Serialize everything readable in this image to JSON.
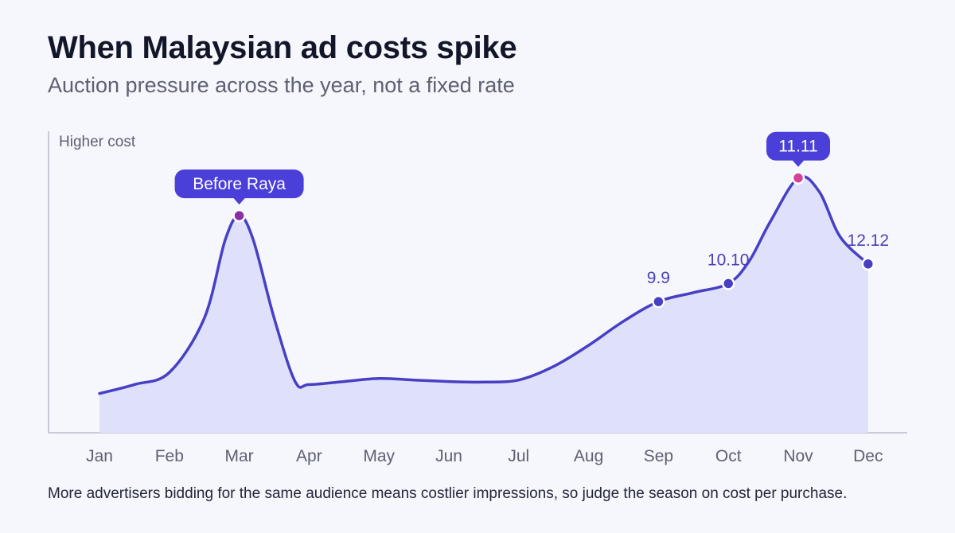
{
  "title": "When Malaysian ad costs spike",
  "subtitle": "Auction pressure across the year, not a fixed rate",
  "footnote": "More advertisers bidding for the same audience means costlier impressions, so judge the season on cost per purchase.",
  "colors": {
    "line": "#4840c4",
    "area": "#dfe1fa",
    "callout_bg": "#4a3fd8",
    "point": "#4840c4",
    "point_raya": "#8b2ca8",
    "point_peak": "#d5409a",
    "axis": "#b9bccb",
    "label": "#4b3fb8"
  },
  "chart_data": {
    "type": "area",
    "categories": [
      "Jan",
      "Feb",
      "Mar",
      "Apr",
      "May",
      "Jun",
      "Jul",
      "Aug",
      "Sep",
      "Oct",
      "Nov",
      "Dec"
    ],
    "ylabel": "Higher cost",
    "xlabel": "",
    "ylim": [
      0,
      100
    ],
    "grid": false,
    "curve": [
      [
        1.0,
        13
      ],
      [
        1.5,
        16
      ],
      [
        2.0,
        20
      ],
      [
        2.5,
        38
      ],
      [
        2.8,
        64
      ],
      [
        3.0,
        72
      ],
      [
        3.2,
        64
      ],
      [
        3.5,
        38
      ],
      [
        3.8,
        17
      ],
      [
        4.0,
        16
      ],
      [
        4.5,
        17
      ],
      [
        5.0,
        18
      ],
      [
        5.5,
        17.5
      ],
      [
        6.0,
        17
      ],
      [
        6.5,
        16.8
      ],
      [
        7.0,
        17.5
      ],
      [
        7.5,
        22
      ],
      [
        8.0,
        29
      ],
      [
        8.5,
        37
      ],
      [
        9.0,
        43.5
      ],
      [
        9.5,
        46.5
      ],
      [
        10.0,
        49.5
      ],
      [
        10.3,
        57
      ],
      [
        10.6,
        70
      ],
      [
        11.0,
        84.5
      ],
      [
        11.3,
        80
      ],
      [
        11.6,
        65
      ],
      [
        12.0,
        56
      ]
    ],
    "points": [
      {
        "x": 3,
        "y": 72,
        "label": "Before Raya",
        "style": "callout",
        "color": "point_raya"
      },
      {
        "x": 9,
        "y": 43.5,
        "label": "9.9",
        "style": "text",
        "color": "point"
      },
      {
        "x": 10,
        "y": 49.5,
        "label": "10.10",
        "style": "text",
        "color": "point"
      },
      {
        "x": 11,
        "y": 84.5,
        "label": "11.11",
        "style": "callout",
        "color": "point_peak"
      },
      {
        "x": 12,
        "y": 56,
        "label": "12.12",
        "style": "text",
        "color": "point"
      }
    ]
  }
}
